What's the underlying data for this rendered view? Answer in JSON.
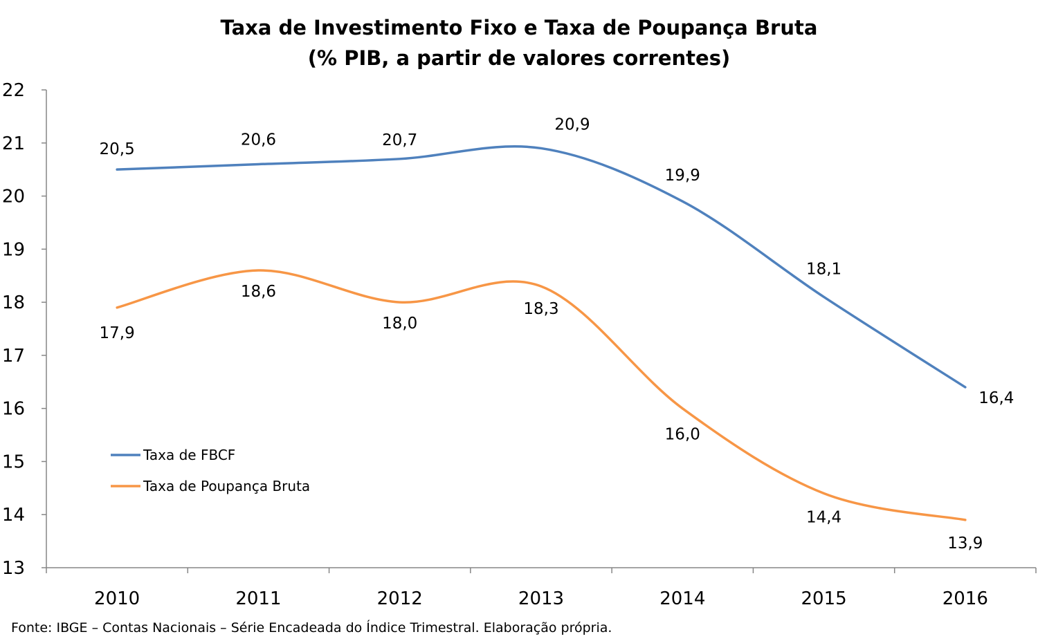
{
  "chart_data": {
    "type": "line",
    "title": "Taxa de Investimento Fixo e Taxa de Poupança Bruta",
    "subtitle": "(% PIB, a partir de valores correntes)",
    "categories": [
      "2010",
      "2011",
      "2012",
      "2013",
      "2014",
      "2015",
      "2016"
    ],
    "ylim": [
      13,
      22
    ],
    "yticks": [
      "22",
      "21",
      "20",
      "19",
      "18",
      "17",
      "16",
      "15",
      "14",
      "13"
    ],
    "grid": false,
    "legend_position": "bottom-left",
    "series": [
      {
        "name": "Taxa de FBCF",
        "color": "#4f81bd",
        "values": [
          20.5,
          20.6,
          20.7,
          20.9,
          19.9,
          18.1,
          16.4
        ],
        "labels": [
          "20,5",
          "20,6",
          "20,7",
          "20,9",
          "19,9",
          "18,1",
          "16,4"
        ]
      },
      {
        "name": "Taxa de Poupança Bruta",
        "color": "#f79646",
        "values": [
          17.9,
          18.6,
          18.0,
          18.3,
          16.0,
          14.4,
          13.9
        ],
        "labels": [
          "17,9",
          "18,6",
          "18,0",
          "18,3",
          "16,0",
          "14,4",
          "13,9"
        ]
      }
    ]
  },
  "source": "Fonte: IBGE – Contas Nacionais – Série Encadeada do Índice Trimestral. Elaboração própria."
}
